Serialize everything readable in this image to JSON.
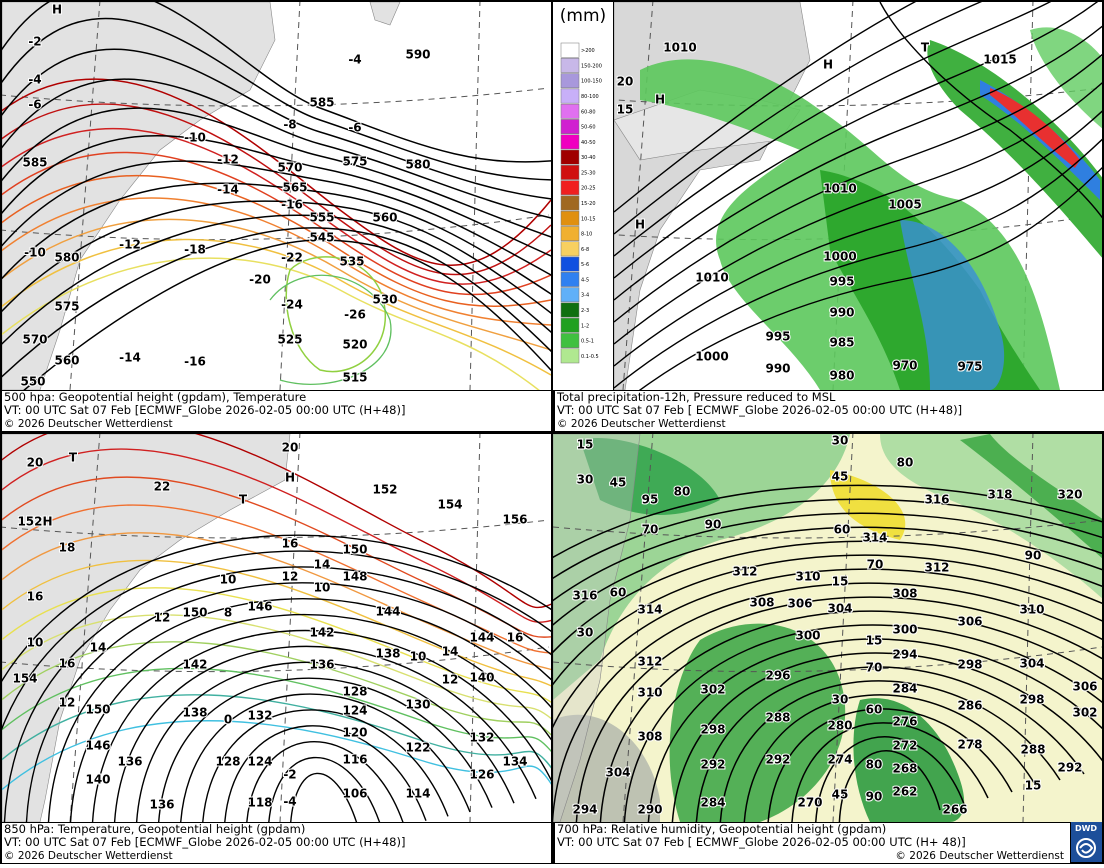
{
  "panels": [
    {
      "caption": "500 hpa: Geopotential height (gpdam), Temperature",
      "valid": "VT: 00 UTC Sat  07 Feb [ECMWF_Globe 2026-02-05 00:00 UTC  (H+48)]",
      "copyright": "© 2026 Deutscher Wetterdienst",
      "labels": [
        "590",
        "585",
        "580",
        "575",
        "570",
        "565",
        "560",
        "555",
        "545",
        "535",
        "530",
        "525",
        "520",
        "515",
        "-4",
        "-6",
        "-8",
        "-10",
        "-12",
        "-14",
        "-16",
        "-18",
        "-20",
        "-22",
        "-24",
        "-26",
        "-2",
        "-4",
        "-6",
        "-10",
        "-12",
        "-14",
        "-16",
        "H",
        "550",
        "560",
        "570",
        "575",
        "580",
        "585"
      ]
    },
    {
      "caption": "Total precipitation-12h, Pressure reduced to MSL",
      "valid": "VT: 00 UTC Sat  07 Feb [ ECMWF_Globe 2026-02-05 00:00 UTC (H+48)]",
      "copyright": "© 2026 Deutscher Wetterdienst",
      "labels": [
        "1015",
        "1010",
        "1010",
        "1005",
        "1000",
        "995",
        "990",
        "985",
        "980",
        "975",
        "970",
        "995",
        "990",
        "1000",
        "1010",
        "H",
        "H",
        "H",
        "T",
        "20",
        "15"
      ]
    },
    {
      "caption": "850 hPa:  Temperature, Geopotential height (gpdam)",
      "valid": "VT: 00 UTC Sat  07 Feb [ECMWF_Globe 2026-02-05 00:00 UTC (H+48)]",
      "copyright": "© 2026 Deutscher Wetterdienst",
      "labels": [
        "20",
        "T",
        "20",
        "H",
        "22",
        "T",
        "152",
        "154",
        "156",
        "152H",
        "18",
        "16",
        "150",
        "14",
        "12",
        "148",
        "10",
        "10",
        "16",
        "12",
        "150",
        "8",
        "146",
        "144",
        "144",
        "16",
        "10",
        "14",
        "142",
        "138",
        "10",
        "14",
        "16",
        "142",
        "136",
        "12",
        "140",
        "154",
        "12",
        "128",
        "124",
        "130",
        "150",
        "138",
        "132",
        "0",
        "120",
        "122",
        "132",
        "146",
        "136",
        "128",
        "124",
        "116",
        "126",
        "134",
        "140",
        "114",
        "106",
        "118",
        "136",
        "-4",
        "-2"
      ]
    },
    {
      "caption": "700 hPa:  Relative humidity, Geopotential height (gpdam)",
      "valid": "VT: 00 UTC Sat  07 Feb [ ECMWF_Globe 2026-02-05 00:00 UTC (H+ 48)]",
      "copyright": "© 2026 Deutscher Wetterdienst",
      "labels": [
        "30",
        "15",
        "30",
        "45",
        "95",
        "80",
        "80",
        "316",
        "318",
        "320",
        "45",
        "70",
        "90",
        "60",
        "314",
        "90",
        "70",
        "312",
        "310",
        "15",
        "312",
        "316",
        "60",
        "314",
        "308",
        "306",
        "304",
        "308",
        "310",
        "30",
        "300",
        "15",
        "300",
        "306",
        "312",
        "294",
        "298",
        "304",
        "296",
        "70",
        "284",
        "286",
        "298",
        "306",
        "310",
        "302",
        "30",
        "60",
        "276",
        "302",
        "288",
        "308",
        "298",
        "280",
        "272",
        "278",
        "288",
        "292",
        "292",
        "274",
        "80",
        "268",
        "292",
        "304",
        "284",
        "262",
        "266",
        "270",
        "290",
        "294",
        "90",
        "45",
        "15"
      ]
    }
  ],
  "legend": {
    "unit": "(mm)",
    "classes": [
      ">200",
      "150-200",
      "100-150",
      "80-100",
      "60-80",
      "50-60",
      "40-50",
      "30-40",
      "25-30",
      "20-25",
      "15-20",
      "10-15",
      "8-10",
      "6-8",
      "5-6",
      "4-5",
      "3-4",
      "2-3",
      "1-2",
      "0.5-1",
      "0.1-0.5"
    ]
  },
  "logo": "DWD"
}
